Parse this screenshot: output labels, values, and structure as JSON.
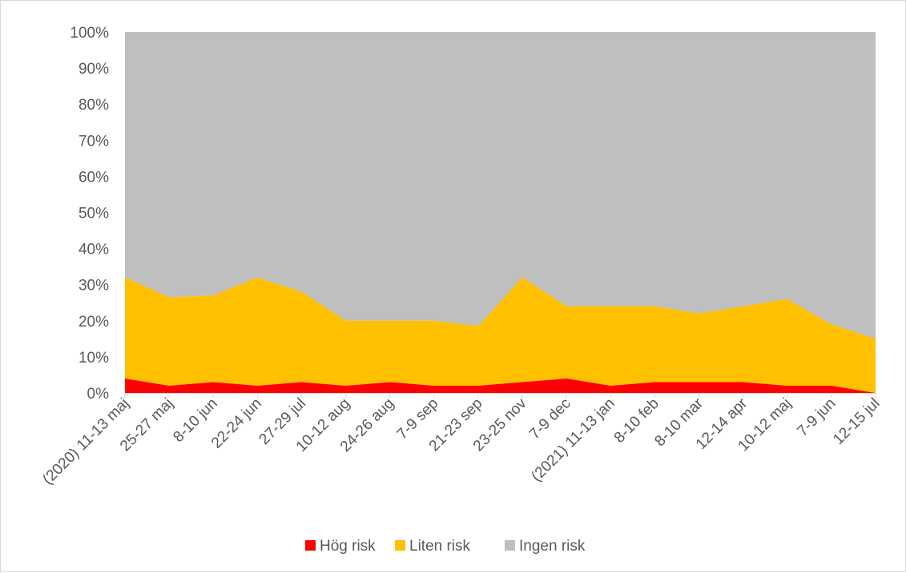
{
  "chart_data": {
    "type": "area",
    "stacked": true,
    "percent_stacked": true,
    "categories": [
      "(2020) 11-13 maj",
      "25-27 maj",
      "8-10 jun",
      "22-24 jun",
      "27-29 jul",
      "10-12 aug",
      "24-26 aug",
      "7-9 sep",
      "21-23 sep",
      "23-25 nov",
      "7-9 dec",
      "(2021) 11-13 jan",
      "8-10 feb",
      "8-10 mar",
      "12-14 apr",
      "10-12 maj",
      "7-9 jun",
      "12-15 jul"
    ],
    "series": [
      {
        "name": "Hög risk",
        "color": "#ff0000",
        "values": [
          4,
          2,
          3,
          2,
          3,
          2,
          3,
          2,
          2,
          3,
          4,
          2,
          3,
          3,
          3,
          2,
          2,
          0
        ]
      },
      {
        "name": "Liten risk",
        "color": "#ffc000",
        "values": [
          28,
          24.5,
          24,
          30,
          25,
          18,
          17,
          18,
          16.5,
          29,
          20,
          22,
          21,
          19,
          21,
          24,
          17,
          15
        ]
      },
      {
        "name": "Ingen risk",
        "color": "#bfbfbf",
        "values": [
          68,
          73.5,
          73,
          68,
          72,
          80,
          80,
          80,
          81.5,
          68,
          76,
          76,
          76,
          78,
          76,
          74,
          81,
          85
        ]
      }
    ],
    "yticks": [
      "0%",
      "10%",
      "20%",
      "30%",
      "40%",
      "50%",
      "60%",
      "70%",
      "80%",
      "90%",
      "100%"
    ],
    "ylim": [
      0,
      100
    ],
    "title": "",
    "xlabel": "",
    "ylabel": "",
    "grid": false,
    "legend_position": "bottom"
  }
}
